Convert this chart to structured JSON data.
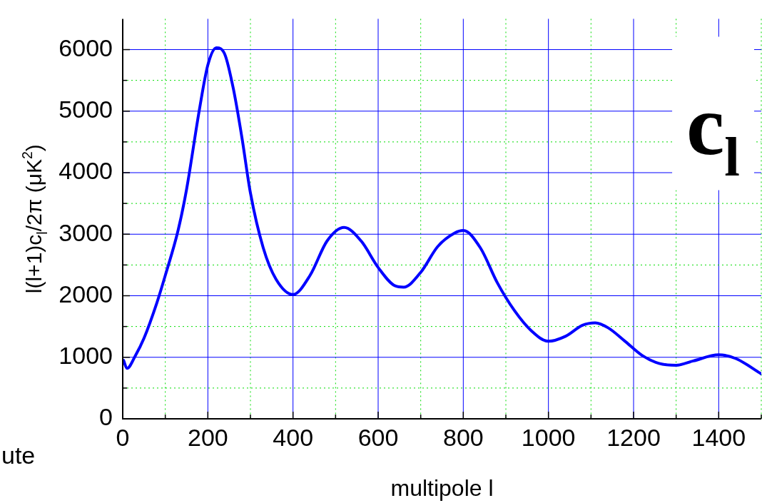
{
  "chart_data": {
    "type": "line",
    "xlabel": "multipole l",
    "ylabel": "l(l+1)c$_{l}$/2π (μK$^{2}$)",
    "annotations": [
      "c$_{l}$",
      "ute"
    ],
    "x": [
      2,
      10,
      30,
      50,
      80,
      100,
      130,
      150,
      180,
      200,
      220,
      240,
      260,
      280,
      300,
      330,
      360,
      400,
      440,
      480,
      520,
      560,
      600,
      640,
      660,
      700,
      740,
      780,
      800,
      840,
      880,
      920,
      960,
      1000,
      1040,
      1080,
      1110,
      1140,
      1180,
      1220,
      1260,
      1300,
      1340,
      1400,
      1440,
      1500
    ],
    "series": [
      {
        "color": "#0000ff",
        "values": [
          950,
          820,
          1030,
          1310,
          1880,
          2330,
          3060,
          3730,
          5020,
          5750,
          6030,
          5920,
          5360,
          4570,
          3670,
          2780,
          2270,
          2020,
          2330,
          2890,
          3110,
          2890,
          2460,
          2160,
          2140,
          2380,
          2800,
          3020,
          3060,
          2780,
          2210,
          1760,
          1430,
          1260,
          1340,
          1520,
          1560,
          1480,
          1260,
          1030,
          900,
          870,
          940,
          1040,
          980,
          730
        ]
      }
    ],
    "xlim": [
      0,
      1500
    ],
    "ylim": [
      0,
      6500
    ],
    "xticks": [
      0,
      {
        "value": 100,
        "label": null
      },
      200,
      {
        "value": 300,
        "label": null
      },
      400,
      {
        "value": 500,
        "label": null
      },
      600,
      {
        "value": 700,
        "label": null
      },
      800,
      {
        "value": 900,
        "label": null
      },
      1000,
      {
        "value": 1100,
        "label": null
      },
      1200,
      {
        "value": 1300,
        "label": null
      },
      1400,
      {
        "value": 1500,
        "label": null
      }
    ],
    "yticks": [
      0,
      {
        "value": 500,
        "label": null
      },
      1000,
      {
        "value": 1500,
        "label": null
      },
      2000,
      {
        "value": 2500,
        "label": null
      },
      3000,
      {
        "value": 3500,
        "label": null
      },
      4000,
      {
        "value": 4500,
        "label": null
      },
      5000,
      {
        "value": 5500,
        "label": null
      },
      6000
    ],
    "grid": true,
    "legend": false,
    "marker": "none",
    "line_style": "solid"
  }
}
